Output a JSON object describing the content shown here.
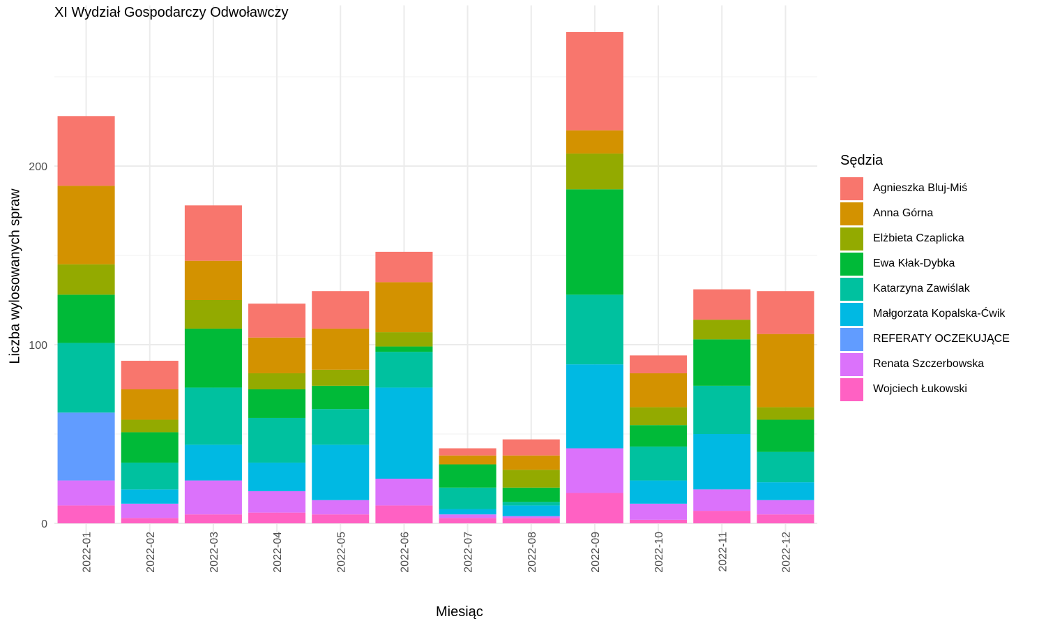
{
  "chart_data": {
    "type": "bar",
    "stacked": true,
    "title": "XI Wydział Gospodarczy Odwoławczy",
    "xlabel": "Miesiąc",
    "ylabel": "Liczba wylosowanych spraw",
    "ylim": [
      -10,
      290
    ],
    "yticks": [
      0,
      100,
      200
    ],
    "grid": true,
    "legend_title": "Sędzia",
    "legend_position": "right",
    "categories": [
      "2022-01",
      "2022-02",
      "2022-03",
      "2022-04",
      "2022-05",
      "2022-06",
      "2022-07",
      "2022-08",
      "2022-09",
      "2022-10",
      "2022-11",
      "2022-12"
    ],
    "series": [
      {
        "name": "Agnieszka Bluj-Miś",
        "color": "#F8766D",
        "values": [
          39,
          16,
          31,
          19,
          21,
          17,
          4,
          9,
          55,
          10,
          17,
          24
        ]
      },
      {
        "name": "Anna Górna",
        "color": "#D39200",
        "values": [
          44,
          17,
          22,
          20,
          23,
          28,
          5,
          8,
          13,
          19,
          0,
          41
        ]
      },
      {
        "name": "Elżbieta Czaplicka",
        "color": "#93AA00",
        "values": [
          17,
          7,
          16,
          9,
          9,
          8,
          0,
          10,
          20,
          10,
          11,
          7
        ]
      },
      {
        "name": "Ewa Kłak-Dybka",
        "color": "#00BA38",
        "values": [
          27,
          17,
          33,
          16,
          13,
          3,
          13,
          8,
          59,
          12,
          26,
          18
        ]
      },
      {
        "name": "Katarzyna Zawiślak",
        "color": "#00C19F",
        "values": [
          39,
          15,
          32,
          25,
          20,
          20,
          12,
          2,
          39,
          19,
          27,
          17
        ]
      },
      {
        "name": "Małgorzata Kopalska-Ćwik",
        "color": "#00B9E3",
        "values": [
          0,
          8,
          20,
          16,
          31,
          51,
          3,
          6,
          47,
          13,
          31,
          10
        ]
      },
      {
        "name": "REFERATY OCZEKUJĄCE",
        "color": "#619CFF",
        "values": [
          38,
          0,
          0,
          0,
          0,
          0,
          0,
          0,
          0,
          0,
          0,
          0
        ]
      },
      {
        "name": "Renata Szczerbowska",
        "color": "#DB72FB",
        "values": [
          14,
          8,
          19,
          12,
          8,
          15,
          2,
          1,
          25,
          9,
          12,
          8
        ]
      },
      {
        "name": "Wojciech Łukowski",
        "color": "#FF61C3",
        "values": [
          10,
          3,
          5,
          6,
          5,
          10,
          3,
          3,
          17,
          2,
          7,
          5
        ]
      }
    ]
  }
}
